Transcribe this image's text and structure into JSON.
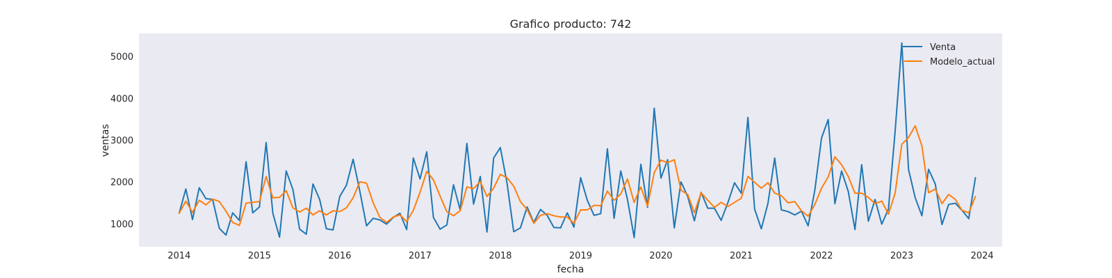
{
  "chart_data": {
    "type": "line",
    "title": "Grafico producto: 742",
    "xlabel": "fecha",
    "ylabel": "ventas",
    "x_ticks": [
      "2014",
      "2015",
      "2016",
      "2017",
      "2018",
      "2019",
      "2020",
      "2021",
      "2022",
      "2023",
      "2024"
    ],
    "y_ticks": [
      "1000",
      "2000",
      "3000",
      "4000",
      "5000"
    ],
    "xlim": [
      "2013-07",
      "2024-04"
    ],
    "ylim": [
      450,
      5550
    ],
    "grid": false,
    "legend_position": "top-right",
    "x_start": "2014-01",
    "x_step": "month",
    "series": [
      {
        "name": "Venta",
        "color": "#1f77b4",
        "values": [
          1250,
          1830,
          1100,
          1860,
          1600,
          1580,
          890,
          730,
          1260,
          1080,
          2480,
          1260,
          1400,
          2940,
          1250,
          680,
          2260,
          1820,
          870,
          750,
          1950,
          1580,
          880,
          850,
          1650,
          1920,
          2540,
          1780,
          950,
          1130,
          1090,
          990,
          1150,
          1250,
          860,
          2570,
          2070,
          2720,
          1150,
          870,
          970,
          1930,
          1330,
          2920,
          1470,
          2130,
          800,
          2570,
          2820,
          1970,
          810,
          900,
          1400,
          1030,
          1340,
          1200,
          910,
          900,
          1260,
          920,
          2100,
          1560,
          1200,
          1240,
          2790,
          1130,
          2260,
          1580,
          670,
          2420,
          1390,
          3760,
          2090,
          2530,
          900,
          2000,
          1650,
          1070,
          1750,
          1370,
          1370,
          1080,
          1500,
          1980,
          1730,
          3540,
          1350,
          880,
          1490,
          2570,
          1330,
          1290,
          1210,
          1300,
          950,
          1800,
          3050,
          3490,
          1480,
          2260,
          1770,
          860,
          2410,
          1060,
          1580,
          990,
          1350,
          3210,
          5320,
          2300,
          1620,
          1190,
          2300,
          1950,
          980,
          1460,
          1490,
          1320,
          1120,
          2100
        ]
      },
      {
        "name": "Modelo_actual",
        "color": "#ff7f0e",
        "values": [
          1250,
          1540,
          1270,
          1560,
          1450,
          1590,
          1530,
          1300,
          1030,
          960,
          1490,
          1510,
          1530,
          2130,
          1620,
          1630,
          1790,
          1380,
          1280,
          1370,
          1210,
          1310,
          1210,
          1310,
          1290,
          1380,
          1620,
          2000,
          1970,
          1500,
          1150,
          1030,
          1160,
          1210,
          1050,
          1320,
          1750,
          2250,
          2050,
          1660,
          1290,
          1190,
          1310,
          1880,
          1840,
          2010,
          1650,
          1850,
          2180,
          2100,
          1900,
          1530,
          1340,
          1010,
          1200,
          1240,
          1190,
          1160,
          1160,
          1010,
          1330,
          1330,
          1440,
          1430,
          1780,
          1560,
          1710,
          2070,
          1510,
          1880,
          1420,
          2220,
          2520,
          2460,
          2530,
          1800,
          1700,
          1260,
          1740,
          1560,
          1390,
          1510,
          1410,
          1510,
          1610,
          2130,
          1990,
          1850,
          1980,
          1730,
          1670,
          1500,
          1530,
          1310,
          1180,
          1460,
          1850,
          2120,
          2600,
          2410,
          2130,
          1730,
          1730,
          1630,
          1480,
          1540,
          1230,
          1730,
          2900,
          3060,
          3340,
          2860,
          1740,
          1830,
          1480,
          1700,
          1580,
          1320,
          1260,
          1650
        ]
      }
    ]
  }
}
